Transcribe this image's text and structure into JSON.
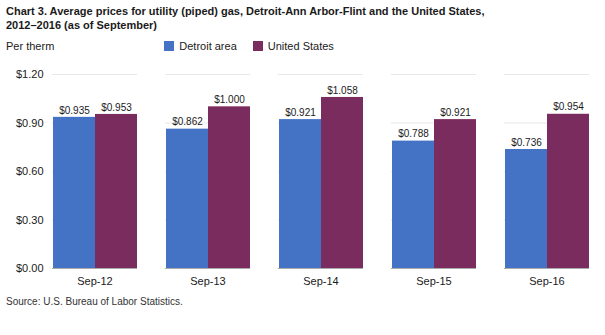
{
  "chart_data": {
    "type": "bar",
    "title": "Chart 3. Average prices for utility (piped) gas, Detroit-Ann Arbor-Flint and the United States,",
    "subtitle": "2012–2016  (as of September)",
    "y_label": "Per therm",
    "caption": "Source: U.S. Bureau of Labor Statistics.",
    "categories": [
      "Sep-12",
      "Sep-13",
      "Sep-14",
      "Sep-15",
      "Sep-16"
    ],
    "series": [
      {
        "name": "Detroit area",
        "color": "#4472C4",
        "values": [
          0.935,
          0.862,
          0.921,
          0.788,
          0.736
        ],
        "value_labels": [
          "$0.935",
          "$0.862",
          "$0.921",
          "$0.788",
          "$0.736"
        ]
      },
      {
        "name": "United States",
        "color": "#7B2C5E",
        "values": [
          0.953,
          1.0,
          1.058,
          0.921,
          0.954
        ],
        "value_labels": [
          "$0.953",
          "$1.000",
          "$1.058",
          "$0.921",
          "$0.954"
        ]
      }
    ],
    "ylim": [
      0.0,
      1.2
    ],
    "yticks": [
      {
        "value": 0.0,
        "label": "$0.00"
      },
      {
        "value": 0.3,
        "label": "$0.30"
      },
      {
        "value": 0.6,
        "label": "$0.60"
      },
      {
        "value": 0.9,
        "label": "$0.90"
      },
      {
        "value": 1.2,
        "label": "$1.20"
      }
    ],
    "grid": true,
    "legend": "top",
    "data_labels": true
  }
}
